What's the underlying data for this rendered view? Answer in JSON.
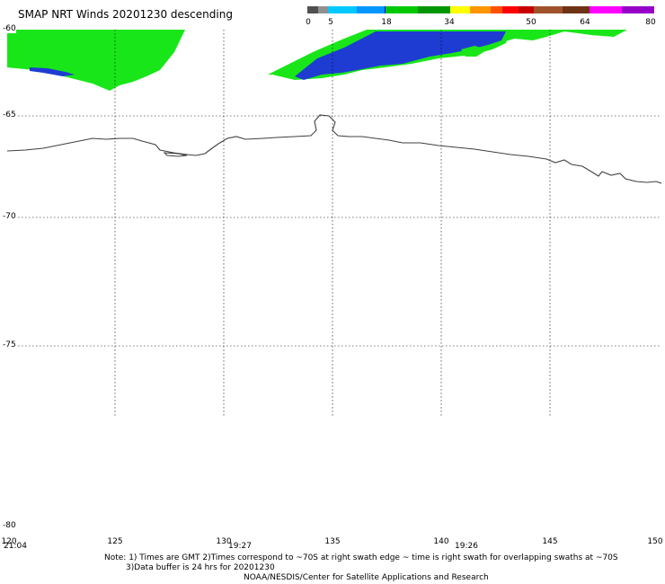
{
  "title": "SMAP NRT Winds  20201230 descending",
  "colorbar": {
    "colors": [
      "#505050",
      "#909090",
      "#00c8ff",
      "#0096ff",
      "#0000ff",
      "#00c800",
      "#009600",
      "#ffff00",
      "#ff9600",
      "#ff5000",
      "#ff0000",
      "#c80000",
      "#a0522d",
      "#6e3214",
      "#ff00ff",
      "#9600c8"
    ],
    "labels": [
      "0",
      "5",
      "18",
      "34",
      "50",
      "64",
      "80"
    ]
  },
  "map": {
    "lat_labels": [
      "-60",
      "-65",
      "-70",
      "-75",
      "-80"
    ],
    "lon_labels": [
      "120",
      "125",
      "130",
      "135",
      "140",
      "145",
      "150"
    ],
    "time_labels": [
      "21:04",
      "19:27",
      "19:26"
    ],
    "colors": {
      "wind_green": "#19e619",
      "wind_blue": "#1e3cd2",
      "coast": "#404040",
      "grid": "#000000"
    }
  },
  "notes": {
    "line1": "Note: 1) Times are GMT 2)Times correspond to ~70S at right swath edge ~ time is right swath for overlapping swaths at ~70S",
    "line2": "3)Data buffer is 24 hrs for 20201230",
    "line3": "NOAA/NESDIS/Center for Satellite Applications and Research"
  }
}
